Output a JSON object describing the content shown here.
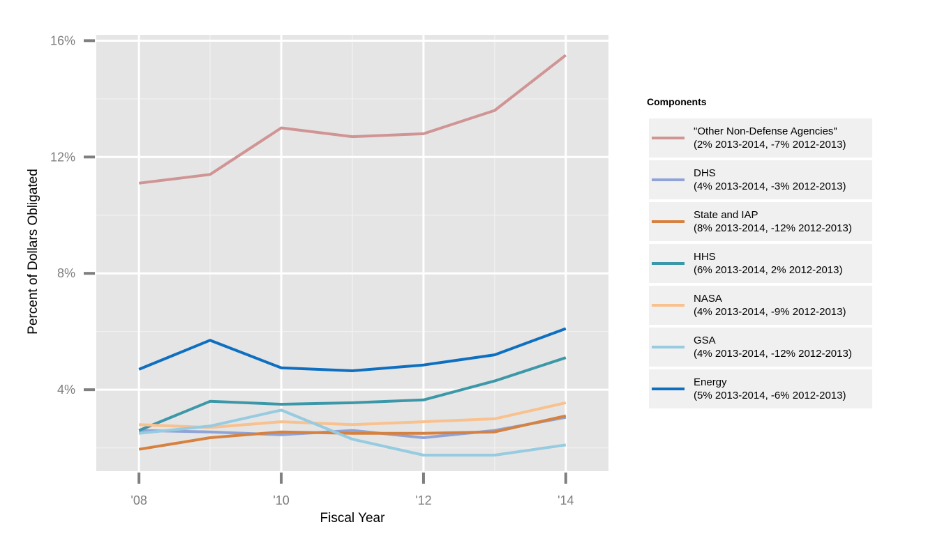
{
  "chart_data": {
    "type": "line",
    "xlabel": "Fiscal Year",
    "ylabel": "Percent of Dollars Obligated",
    "x": [
      2008,
      2009,
      2010,
      2011,
      2012,
      2013,
      2014
    ],
    "xticks": [
      2008,
      2010,
      2012,
      2014
    ],
    "xtick_labels": [
      "'08",
      "'10",
      "'12",
      "'14"
    ],
    "xlim": [
      2007.4,
      2014.6
    ],
    "yticks": [
      4,
      8,
      12,
      16
    ],
    "ytick_labels": [
      "4%",
      "8%",
      "12%",
      "16%"
    ],
    "ylim": [
      1.2,
      16.2
    ],
    "grid": true,
    "legend": {
      "title": "Components",
      "position": "right"
    },
    "series": [
      {
        "key": "other",
        "name": "\"Other Non-Defense Agencies\"",
        "detail": "(2% 2013-2014, -7% 2012-2013)",
        "color": "#d09494",
        "values": [
          11.1,
          11.4,
          13.0,
          12.7,
          12.8,
          13.6,
          15.5
        ]
      },
      {
        "key": "dhs",
        "name": "DHS",
        "detail": "(4% 2013-2014, -3% 2012-2013)",
        "color": "#8fa3d6",
        "values": [
          2.6,
          2.55,
          2.45,
          2.6,
          2.35,
          2.6,
          3.05
        ]
      },
      {
        "key": "state",
        "name": "State and IAP",
        "detail": "(8% 2013-2014, -12% 2012-2013)",
        "color": "#d6813f",
        "values": [
          1.95,
          2.35,
          2.55,
          2.5,
          2.5,
          2.55,
          3.1
        ]
      },
      {
        "key": "hhs",
        "name": "HHS",
        "detail": "(6% 2013-2014, 2% 2012-2013)",
        "color": "#3c98a8",
        "values": [
          2.6,
          3.6,
          3.5,
          3.55,
          3.65,
          4.3,
          5.1
        ]
      },
      {
        "key": "nasa",
        "name": "NASA",
        "detail": "(4% 2013-2014, -9% 2012-2013)",
        "color": "#f8c18e",
        "values": [
          2.8,
          2.7,
          2.9,
          2.8,
          2.9,
          3.0,
          3.55
        ]
      },
      {
        "key": "gsa",
        "name": "GSA",
        "detail": "(4% 2013-2014, -12% 2012-2013)",
        "color": "#96cbe0",
        "values": [
          2.5,
          2.75,
          3.3,
          2.3,
          1.75,
          1.75,
          2.1
        ]
      },
      {
        "key": "energy",
        "name": "Energy",
        "detail": "(5% 2013-2014, -6% 2012-2013)",
        "color": "#0e6fc0",
        "values": [
          4.7,
          5.7,
          4.75,
          4.65,
          4.85,
          5.2,
          6.1
        ]
      }
    ]
  }
}
